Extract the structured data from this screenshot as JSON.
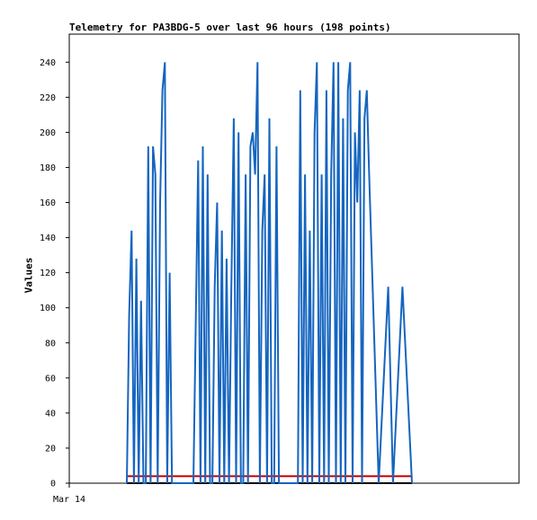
{
  "chart_data": {
    "type": "line",
    "title": "Telemetry for PA3BDG-5 over last 96 hours (198 points)",
    "ylabel": "Values",
    "xlabel": "",
    "x_tick_labels": [
      "Mar 14"
    ],
    "ylim": [
      0,
      256
    ],
    "y_ticks": [
      0,
      20,
      40,
      60,
      80,
      100,
      120,
      140,
      160,
      180,
      200,
      220,
      240
    ],
    "grid": false,
    "legend": "none",
    "colors": {
      "series_1": "#1565c0",
      "series_2": "#d00000",
      "series_3": "#000000"
    },
    "series": [
      {
        "x": [
          0,
          0.5,
          1,
          1.5,
          2,
          2.5,
          3,
          3.5,
          4,
          4.5,
          5,
          5.5,
          6,
          6.5,
          7,
          7.5,
          8,
          8.5,
          9,
          9.5,
          10,
          10.5,
          11,
          11.5,
          12,
          12.5,
          13,
          13.5,
          14,
          15,
          15.5,
          16,
          16.5,
          17,
          17.5,
          18,
          18.5,
          19,
          19.5,
          20,
          20.5,
          21,
          21.5,
          22,
          22.5,
          23,
          23.5,
          24,
          24.5,
          25,
          25.5,
          26,
          26.5,
          27,
          27.5,
          28,
          28.5,
          29,
          29.5,
          30,
          30.5,
          31,
          31.5,
          32,
          32.5,
          33,
          33.5,
          34,
          36,
          36.5,
          37,
          37.5,
          38,
          38.5,
          39,
          39.5,
          40,
          40.5,
          41,
          41.5,
          42,
          42.5,
          43,
          43.5,
          44,
          44.5,
          45,
          45.5,
          46,
          46.5,
          47,
          47.5,
          48,
          48.5,
          49,
          49.5,
          50,
          50.5,
          51,
          53,
          55,
          56,
          58,
          60
        ],
        "values": [
          0,
          96,
          144,
          0,
          128,
          0,
          104,
          0,
          0,
          192,
          0,
          192,
          176,
          0,
          160,
          224,
          240,
          0,
          120,
          0,
          0,
          0,
          0,
          0,
          0,
          0,
          0,
          0,
          0,
          184,
          0,
          192,
          0,
          176,
          0,
          0,
          112,
          160,
          0,
          144,
          0,
          128,
          0,
          112,
          208,
          0,
          200,
          0,
          0,
          176,
          0,
          192,
          200,
          176,
          240,
          0,
          144,
          176,
          0,
          208,
          0,
          0,
          192,
          0,
          0,
          0,
          0,
          0,
          0,
          224,
          0,
          176,
          0,
          144,
          0,
          200,
          240,
          0,
          176,
          0,
          224,
          0,
          176,
          240,
          0,
          240,
          0,
          208,
          0,
          224,
          240,
          0,
          200,
          160,
          224,
          0,
          208,
          224,
          176,
          0,
          112,
          0,
          112,
          0
        ]
      },
      {
        "x": [
          0,
          60
        ],
        "values": [
          4,
          4
        ]
      },
      {
        "x": [
          0,
          60
        ],
        "values": [
          0,
          0
        ]
      }
    ]
  }
}
